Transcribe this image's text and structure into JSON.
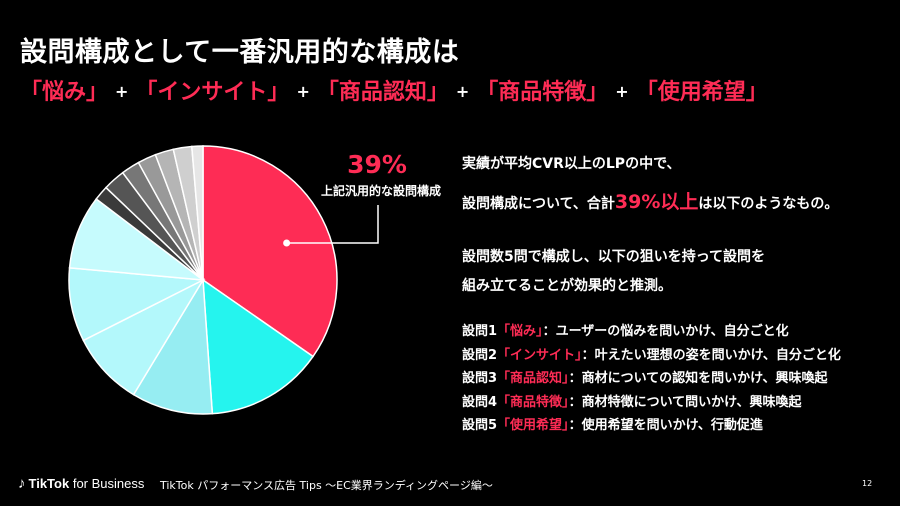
{
  "header": {
    "title": "設問構成として一番汎用的な構成は",
    "keywords": [
      "「悩み」",
      "「インサイト」",
      "「商品認知」",
      "「商品特徴」",
      "「使用希望」"
    ],
    "plus": "+"
  },
  "callout": {
    "percent": "39%",
    "label": "上記汎用的な設問構成"
  },
  "body": {
    "line1": "実績が平均CVR以上のLPの中で、",
    "line2_pre": "設問構成について、合計",
    "line2_em": "39%以上",
    "line2_post": "は以下のようなもの。",
    "line3": "設問数5問で構成し、以下の狙いを持って設問を",
    "line4": "組み立てることが効果的と推測。"
  },
  "questions": [
    {
      "num": "設問1",
      "kw": "「悩み」",
      "desc": "：ユーザーの悩みを問いかけ、自分ごと化"
    },
    {
      "num": "設問2",
      "kw": "「インサイト」",
      "desc": "：叶えたい理想の姿を問いかけ、自分ごと化"
    },
    {
      "num": "設問3",
      "kw": "「商品認知」",
      "desc": "：商材についての認知を問いかけ、興味喚起"
    },
    {
      "num": "設問4",
      "kw": "「商品特徴」",
      "desc": "：商材特徴について問いかけ、興味喚起"
    },
    {
      "num": "設問5",
      "kw": "「使用希望」",
      "desc": "：使用希望を問いかけ、行動促進"
    }
  ],
  "footer": {
    "brand": "TikTok",
    "brand_suffix": "for Business",
    "text": "TikTok パフォーマンス広告 Tips ～EC業界ランディングページ編～",
    "page": "12"
  },
  "chart_data": {
    "type": "pie",
    "values": [
      39,
      16,
      11,
      10,
      10,
      10,
      2,
      3,
      2.5,
      2.5,
      2.5,
      2.5,
      1.5
    ],
    "colors": [
      "#fe2c55",
      "#25f4ee",
      "#96edf2",
      "#b3f8fb",
      "#b3f8fb",
      "#c6fbfd",
      "#3a3a3a",
      "#555555",
      "#777777",
      "#999999",
      "#b5b5b5",
      "#cfcfcf",
      "#e6e6e6"
    ],
    "highlight_index": 0,
    "highlight_label": "39%"
  }
}
